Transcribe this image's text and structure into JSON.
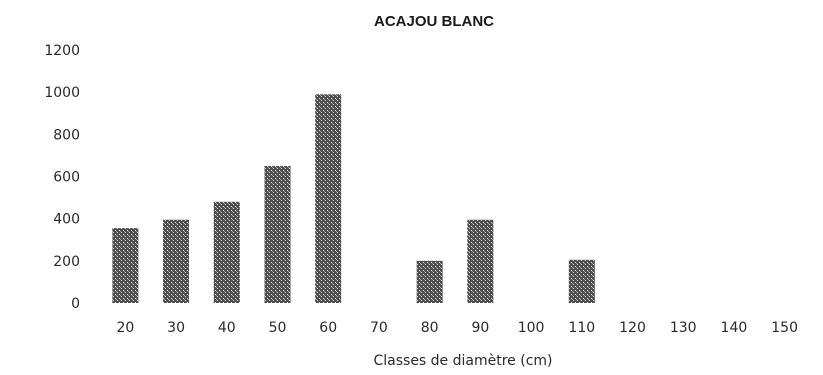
{
  "chart_data": {
    "type": "bar",
    "title": "ACAJOU BLANC",
    "subtitle": "",
    "xlabel": "Classes de diamètre (cm)",
    "ylabel": "",
    "categories": [
      "20",
      "30",
      "40",
      "50",
      "60",
      "70",
      "80",
      "90",
      "100",
      "110",
      "120",
      "130",
      "140",
      "150"
    ],
    "values": [
      355,
      395,
      480,
      650,
      990,
      0,
      200,
      395,
      0,
      205,
      0,
      0,
      0,
      0
    ],
    "ylim": [
      0,
      1200
    ],
    "yticks": [
      "0",
      "200",
      "400",
      "600",
      "800",
      "1000",
      "1200"
    ],
    "grid": false,
    "legend": "none",
    "bar_color": "#2b2b2b"
  }
}
